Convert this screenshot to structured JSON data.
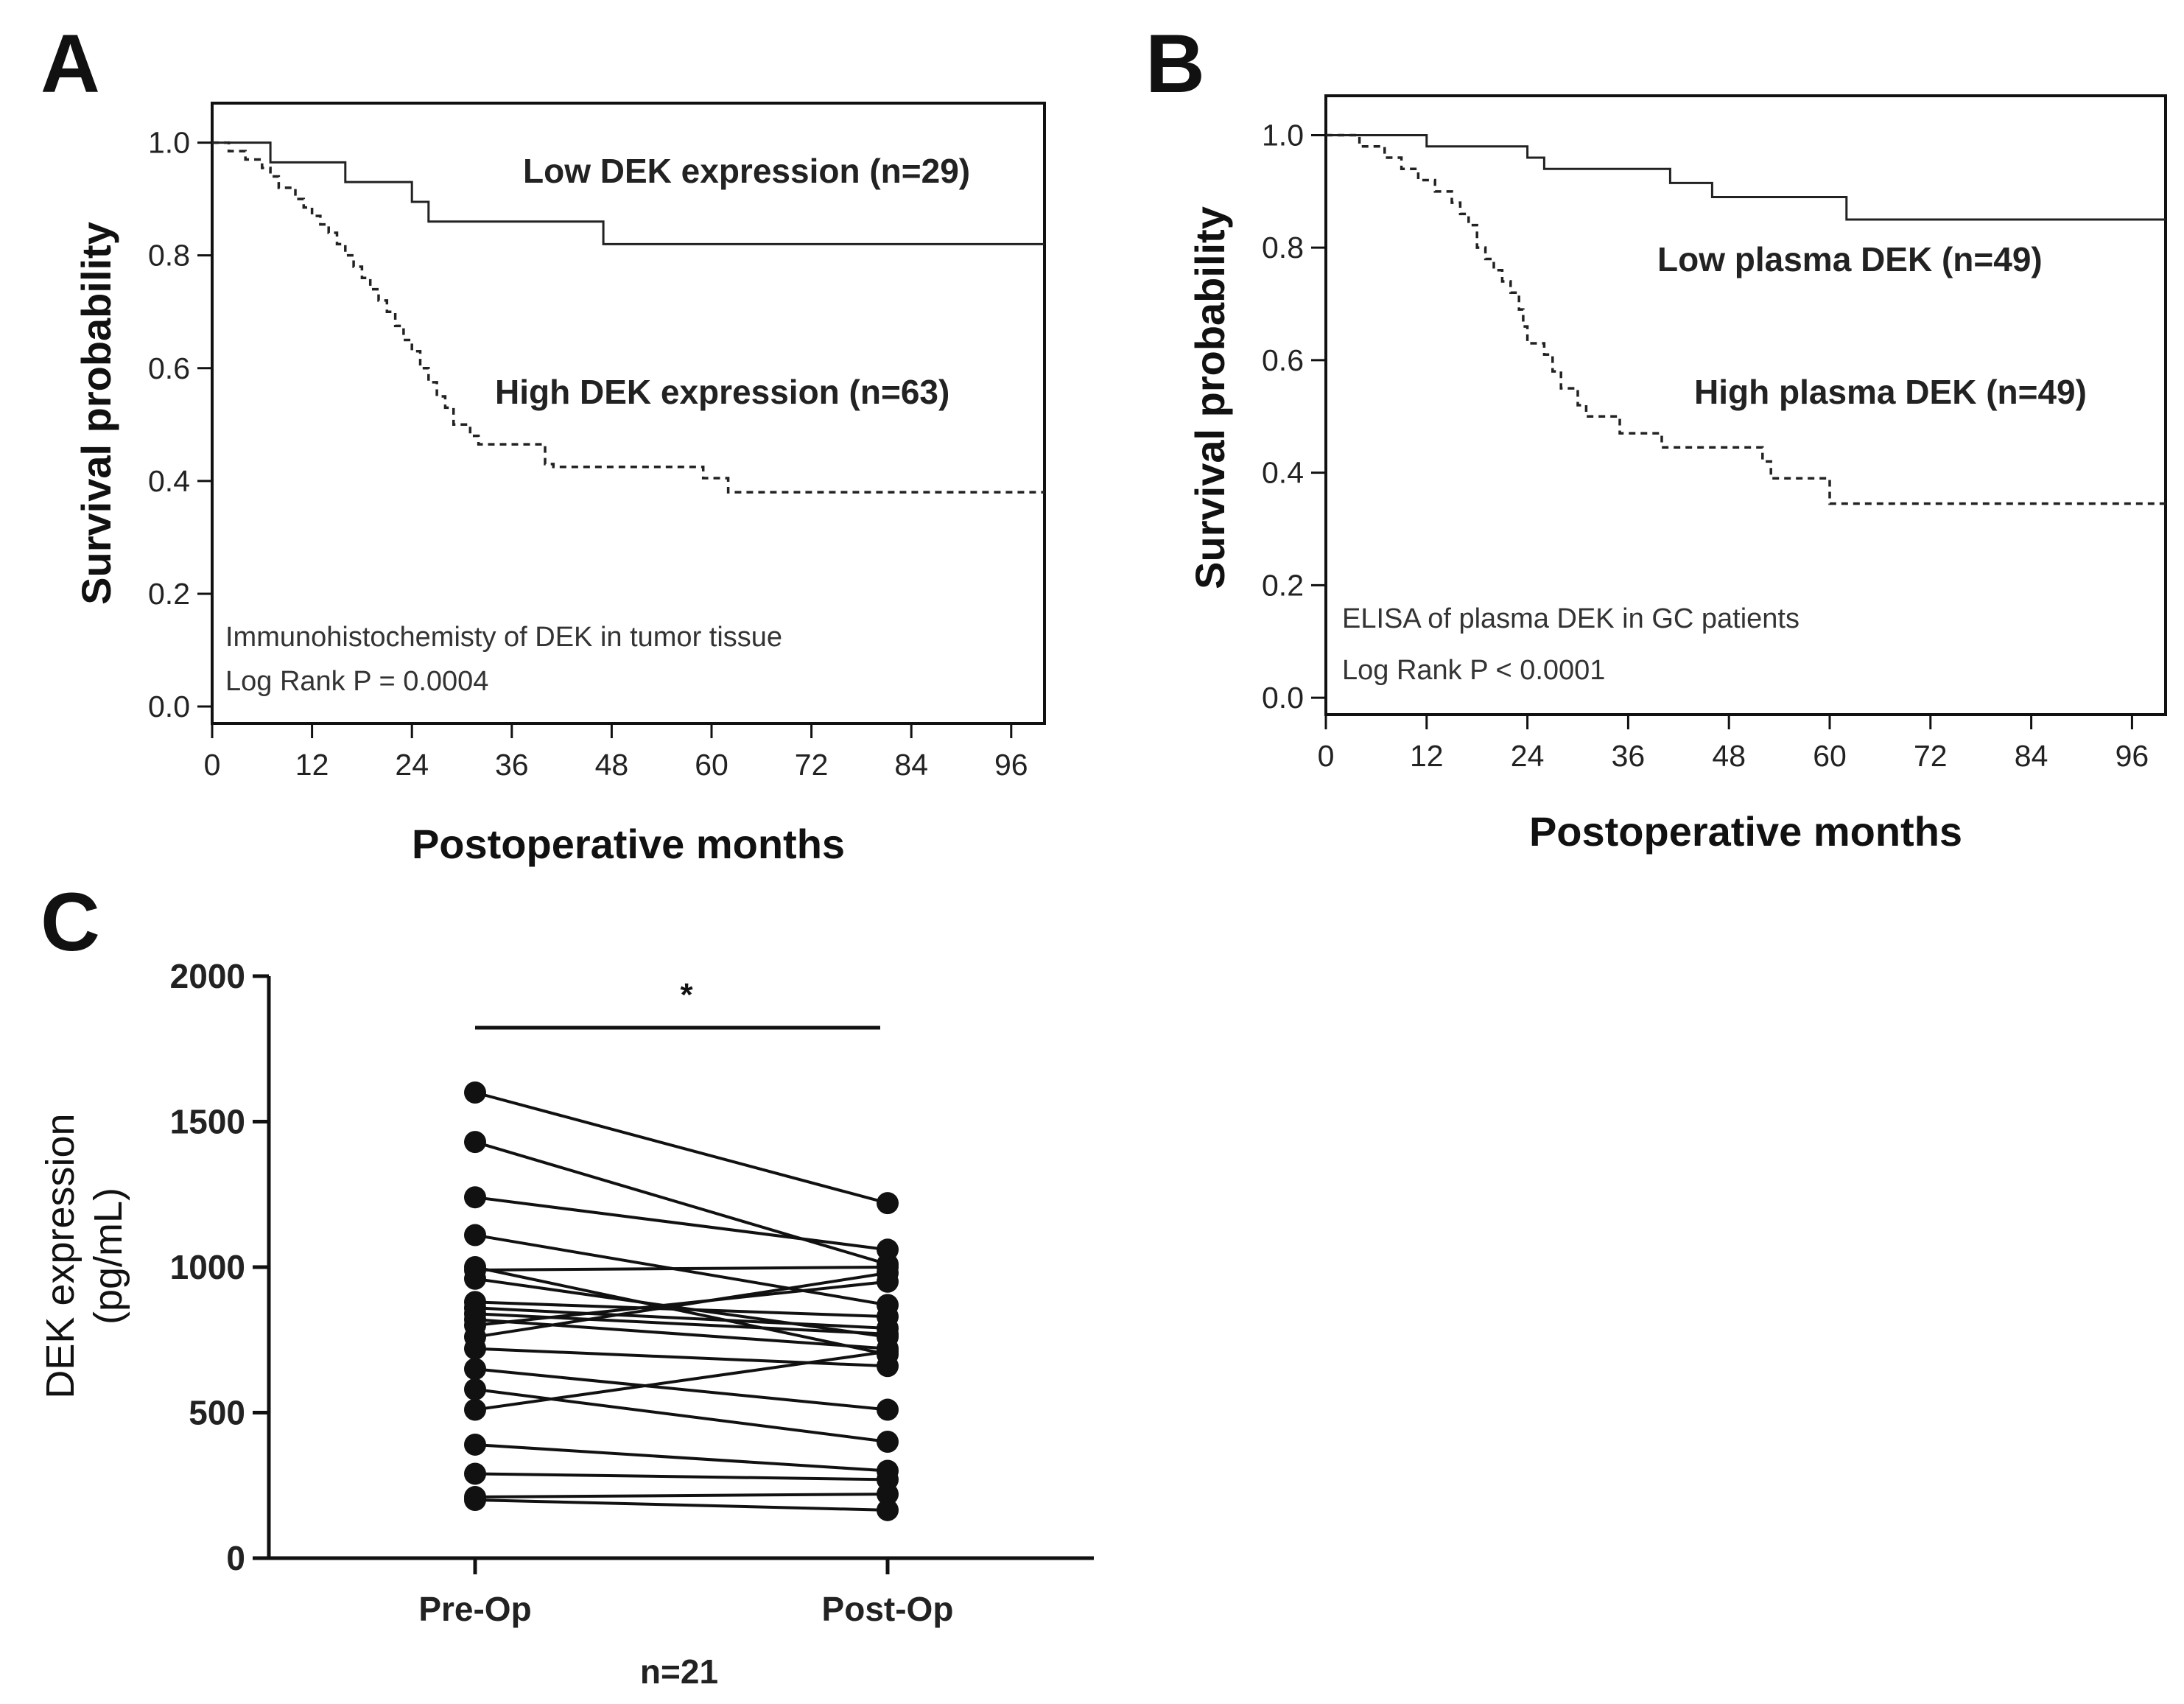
{
  "chart_data": [
    {
      "panel": "A",
      "type": "line",
      "subtype": "kaplan-meier",
      "xlabel": "Postoperative months",
      "ylabel": "Survival probability",
      "xlim": [
        0,
        100
      ],
      "ylim": [
        -0.03,
        1.07
      ],
      "xticks": [
        "0",
        "12",
        "24",
        "36",
        "48",
        "60",
        "72",
        "84",
        "96"
      ],
      "yticks": [
        "0.0",
        "0.2",
        "0.4",
        "0.6",
        "0.8",
        "1.0"
      ],
      "annotations": [
        "Immunohistochemisty of DEK in tumor tissue",
        "Log Rank P = 0.0004"
      ],
      "series": [
        {
          "name": "Low DEK expression (n=29)",
          "style": "solid",
          "steps": [
            [
              0,
              1.0
            ],
            [
              7,
              0.965
            ],
            [
              16,
              0.93
            ],
            [
              24,
              0.895
            ],
            [
              26,
              0.86
            ],
            [
              47,
              0.82
            ],
            [
              100,
              0.82
            ]
          ]
        },
        {
          "name": "High DEK expression (n=63)",
          "style": "dashed",
          "steps": [
            [
              0,
              1.0
            ],
            [
              2,
              0.985
            ],
            [
              4,
              0.97
            ],
            [
              6,
              0.955
            ],
            [
              7,
              0.94
            ],
            [
              8,
              0.92
            ],
            [
              10,
              0.9
            ],
            [
              11,
              0.885
            ],
            [
              12,
              0.87
            ],
            [
              13,
              0.855
            ],
            [
              14,
              0.84
            ],
            [
              15,
              0.82
            ],
            [
              16,
              0.8
            ],
            [
              17,
              0.78
            ],
            [
              18,
              0.76
            ],
            [
              19,
              0.74
            ],
            [
              20,
              0.72
            ],
            [
              21,
              0.7
            ],
            [
              22,
              0.675
            ],
            [
              23,
              0.65
            ],
            [
              24,
              0.63
            ],
            [
              25,
              0.6
            ],
            [
              26,
              0.575
            ],
            [
              27,
              0.55
            ],
            [
              28,
              0.53
            ],
            [
              29,
              0.5
            ],
            [
              31,
              0.48
            ],
            [
              32,
              0.465
            ],
            [
              40,
              0.43
            ],
            [
              41,
              0.425
            ],
            [
              59,
              0.405
            ],
            [
              62,
              0.38
            ],
            [
              100,
              0.38
            ]
          ]
        }
      ]
    },
    {
      "panel": "B",
      "type": "line",
      "subtype": "kaplan-meier",
      "xlabel": "Postoperative months",
      "ylabel": "Survival probability",
      "xlim": [
        0,
        100
      ],
      "ylim": [
        -0.03,
        1.07
      ],
      "xticks": [
        "0",
        "12",
        "24",
        "36",
        "48",
        "60",
        "72",
        "84",
        "96"
      ],
      "yticks": [
        "0.0",
        "0.2",
        "0.4",
        "0.6",
        "0.8",
        "1.0"
      ],
      "annotations": [
        "ELISA of plasma DEK in  GC patients",
        "Log Rank P < 0.0001"
      ],
      "series": [
        {
          "name": "Low plasma DEK (n=49)",
          "style": "solid",
          "steps": [
            [
              0,
              1.0
            ],
            [
              12,
              0.98
            ],
            [
              24,
              0.96
            ],
            [
              26,
              0.94
            ],
            [
              41,
              0.915
            ],
            [
              46,
              0.89
            ],
            [
              62,
              0.85
            ],
            [
              100,
              0.85
            ]
          ]
        },
        {
          "name": "High plasma DEK  (n=49)",
          "style": "dashed",
          "steps": [
            [
              0,
              1.0
            ],
            [
              4,
              0.98
            ],
            [
              7,
              0.96
            ],
            [
              9,
              0.94
            ],
            [
              11,
              0.92
            ],
            [
              13,
              0.9
            ],
            [
              15,
              0.88
            ],
            [
              16,
              0.86
            ],
            [
              17,
              0.84
            ],
            [
              18,
              0.8
            ],
            [
              19,
              0.78
            ],
            [
              20,
              0.76
            ],
            [
              21,
              0.74
            ],
            [
              22,
              0.72
            ],
            [
              23,
              0.69
            ],
            [
              23.5,
              0.66
            ],
            [
              24,
              0.63
            ],
            [
              26,
              0.61
            ],
            [
              27,
              0.58
            ],
            [
              28,
              0.55
            ],
            [
              30,
              0.52
            ],
            [
              31,
              0.5
            ],
            [
              35,
              0.47
            ],
            [
              40,
              0.445
            ],
            [
              52,
              0.42
            ],
            [
              53,
              0.39
            ],
            [
              60,
              0.345
            ],
            [
              100,
              0.345
            ]
          ]
        }
      ]
    },
    {
      "panel": "C",
      "type": "scatter",
      "subtype": "paired before-after",
      "categories": [
        "Pre-Op",
        "Post-Op"
      ],
      "ylabel_lines": [
        "DEK expression",
        "(pg/mL)"
      ],
      "xlabel": "n=21",
      "ylim": [
        0,
        2000
      ],
      "yticks": [
        "0",
        "500",
        "1000",
        "1500",
        "2000"
      ],
      "significance": "*",
      "pairs": [
        [
          1600,
          1220
        ],
        [
          1430,
          1010
        ],
        [
          1240,
          1060
        ],
        [
          1110,
          870
        ],
        [
          1000,
          700
        ],
        [
          990,
          1000
        ],
        [
          960,
          760
        ],
        [
          880,
          830
        ],
        [
          860,
          790
        ],
        [
          840,
          770
        ],
        [
          820,
          720
        ],
        [
          800,
          950
        ],
        [
          760,
          980
        ],
        [
          720,
          660
        ],
        [
          650,
          510
        ],
        [
          580,
          400
        ],
        [
          510,
          710
        ],
        [
          390,
          300
        ],
        [
          290,
          270
        ],
        [
          210,
          220
        ],
        [
          200,
          165
        ]
      ]
    }
  ]
}
